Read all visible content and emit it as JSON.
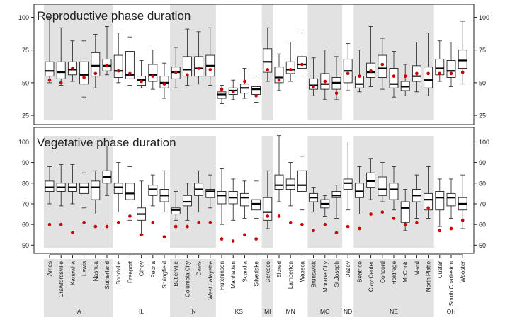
{
  "chart_data": {
    "type": "boxplot",
    "colors": {
      "shade": "#e2e2e2",
      "box_fill": "#ffffff",
      "stroke": "#222222",
      "median": "#000000",
      "point": "#cc0000"
    },
    "sites": [
      {
        "name": "Ames",
        "state": "IA"
      },
      {
        "name": "Crawfordsville",
        "state": "IA"
      },
      {
        "name": "Kanawha",
        "state": "IA"
      },
      {
        "name": "Lewis",
        "state": "IA"
      },
      {
        "name": "Nashua",
        "state": "IA"
      },
      {
        "name": "Sutherland",
        "state": "IA"
      },
      {
        "name": "Bondville",
        "state": "IL"
      },
      {
        "name": "Freeport",
        "state": "IL"
      },
      {
        "name": "Olney",
        "state": "IL"
      },
      {
        "name": "Peoria",
        "state": "IL"
      },
      {
        "name": "Springfield",
        "state": "IL"
      },
      {
        "name": "Butlerville",
        "state": "IN"
      },
      {
        "name": "Columbia City",
        "state": "IN"
      },
      {
        "name": "Davis",
        "state": "IN"
      },
      {
        "name": "West Lafayette",
        "state": "IN"
      },
      {
        "name": "Hutchinson",
        "state": "KS"
      },
      {
        "name": "Manhattan",
        "state": "KS"
      },
      {
        "name": "Scandia",
        "state": "KS"
      },
      {
        "name": "Silverlake",
        "state": "KS"
      },
      {
        "name": "Ceresco",
        "state": "MI"
      },
      {
        "name": "Eldred",
        "state": "MN"
      },
      {
        "name": "Lamberton",
        "state": "MN"
      },
      {
        "name": "Waseca",
        "state": "MN"
      },
      {
        "name": "Brunswick",
        "state": "MO"
      },
      {
        "name": "Monroe City",
        "state": "MO"
      },
      {
        "name": "St.Joseph",
        "state": "MO"
      },
      {
        "name": "Dazey",
        "state": "ND"
      },
      {
        "name": "Beatrice",
        "state": "NE"
      },
      {
        "name": "Clay Center",
        "state": "NE"
      },
      {
        "name": "Concord",
        "state": "NE"
      },
      {
        "name": "Holdrege",
        "state": "NE"
      },
      {
        "name": "McCook",
        "state": "NE"
      },
      {
        "name": "Mead",
        "state": "NE"
      },
      {
        "name": "North Platte",
        "state": "NE"
      },
      {
        "name": "Custar",
        "state": "OH"
      },
      {
        "name": "South Charleston",
        "state": "OH"
      },
      {
        "name": "Wooster",
        "state": "OH"
      }
    ],
    "states": [
      {
        "label": "IA",
        "first": 0,
        "last": 5,
        "shaded": true
      },
      {
        "label": "IL",
        "first": 6,
        "last": 10,
        "shaded": false
      },
      {
        "label": "IN",
        "first": 11,
        "last": 14,
        "shaded": true
      },
      {
        "label": "KS",
        "first": 15,
        "last": 18,
        "shaded": false
      },
      {
        "label": "MI",
        "first": 19,
        "last": 19,
        "shaded": true
      },
      {
        "label": "MN",
        "first": 20,
        "last": 22,
        "shaded": false
      },
      {
        "label": "MO",
        "first": 23,
        "last": 25,
        "shaded": true
      },
      {
        "label": "ND",
        "first": 26,
        "last": 26,
        "shaded": false
      },
      {
        "label": "NE",
        "first": 27,
        "last": 33,
        "shaded": true
      },
      {
        "label": "OH",
        "first": 34,
        "last": 36,
        "shaded": false
      }
    ],
    "panels": [
      {
        "title": "Reproductive phase duration",
        "ylim": [
          18,
          110
        ],
        "ticks": [
          25,
          50,
          75,
          100
        ],
        "boxes": [
          [
            50,
            55,
            59,
            66,
            100
          ],
          [
            48,
            53,
            58,
            66,
            92
          ],
          [
            51,
            56,
            60,
            66,
            82
          ],
          [
            39,
            49,
            56,
            66,
            82
          ],
          [
            46,
            55,
            63,
            73,
            87
          ],
          [
            56,
            59,
            63,
            68,
            93
          ],
          [
            50,
            54,
            59,
            71,
            88
          ],
          [
            48,
            53,
            56,
            74,
            85
          ],
          [
            46,
            48,
            52,
            55,
            67
          ],
          [
            45,
            51,
            56,
            64,
            75
          ],
          [
            38,
            46,
            50,
            55,
            65
          ],
          [
            46,
            53,
            58,
            62,
            77
          ],
          [
            48,
            55,
            60,
            70,
            91
          ],
          [
            49,
            55,
            61,
            70,
            89
          ],
          [
            48,
            55,
            63,
            71,
            92
          ],
          [
            34,
            38,
            41,
            43,
            48
          ],
          [
            37,
            41,
            44,
            46,
            52
          ],
          [
            38,
            42,
            46,
            49,
            61
          ],
          [
            35,
            41,
            45,
            47,
            55
          ],
          [
            51,
            58,
            66,
            76,
            92
          ],
          [
            44,
            50,
            54,
            62,
            72
          ],
          [
            51,
            57,
            60,
            66,
            81
          ],
          [
            55,
            61,
            64,
            70,
            88
          ],
          [
            40,
            45,
            48,
            53,
            69
          ],
          [
            37,
            45,
            49,
            57,
            75
          ],
          [
            37,
            45,
            50,
            54,
            70
          ],
          [
            44,
            50,
            59,
            68,
            80
          ],
          [
            43,
            46,
            49,
            55,
            75
          ],
          [
            47,
            54,
            58,
            65,
            93
          ],
          [
            45,
            54,
            61,
            71,
            84
          ],
          [
            39,
            46,
            49,
            61,
            74
          ],
          [
            40,
            44,
            47,
            51,
            64
          ],
          [
            43,
            51,
            55,
            63,
            81
          ],
          [
            40,
            46,
            52,
            62,
            88
          ],
          [
            51,
            56,
            61,
            68,
            82
          ],
          [
            47,
            54,
            59,
            67,
            81
          ],
          [
            49,
            61,
            67,
            75,
            97
          ]
        ],
        "points": [
          52,
          50,
          61,
          54,
          57,
          63,
          59,
          57,
          51,
          55,
          49,
          58,
          56,
          61,
          60,
          45,
          43,
          51,
          40,
          60,
          52,
          60,
          64,
          47,
          51,
          42,
          57,
          55,
          59,
          64,
          55,
          55,
          57,
          57,
          57,
          57,
          58
        ]
      },
      {
        "title": "Vegetative phase duration",
        "ylim": [
          46,
          107
        ],
        "ticks": [
          50,
          60,
          70,
          80,
          90,
          100
        ],
        "boxes": [
          [
            70,
            76,
            78,
            81,
            88
          ],
          [
            69,
            76,
            78,
            80,
            89
          ],
          [
            70,
            76,
            78,
            80,
            89
          ],
          [
            68,
            75,
            78,
            80,
            85
          ],
          [
            65,
            72,
            78,
            81,
            86
          ],
          [
            74,
            80,
            83,
            86,
            98
          ],
          [
            66,
            75,
            78,
            80,
            90
          ],
          [
            62,
            72,
            75,
            80,
            88
          ],
          [
            55,
            62,
            65,
            68,
            81
          ],
          [
            69,
            74,
            77,
            79,
            84
          ],
          [
            66,
            71,
            74,
            77,
            86
          ],
          [
            62,
            65,
            67,
            68,
            76
          ],
          [
            62,
            69,
            71,
            74,
            80
          ],
          [
            66,
            74,
            77,
            80,
            86
          ],
          [
            68,
            73,
            76,
            77,
            84
          ],
          [
            60,
            70,
            74,
            76,
            87
          ],
          [
            62,
            70,
            73,
            76,
            82
          ],
          [
            63,
            69,
            73,
            75,
            81
          ],
          [
            63,
            67,
            70,
            72,
            81
          ],
          [
            58,
            62,
            66,
            73,
            86
          ],
          [
            71,
            77,
            79,
            84,
            103
          ],
          [
            69,
            77,
            79,
            82,
            90
          ],
          [
            67,
            76,
            79,
            86,
            93
          ],
          [
            66,
            71,
            73,
            75,
            78
          ],
          [
            64,
            68,
            70,
            72,
            74
          ],
          [
            63,
            73,
            74,
            76,
            79
          ],
          [
            67,
            77,
            80,
            82,
            100
          ],
          [
            65,
            73,
            76,
            80,
            88
          ],
          [
            72,
            78,
            81,
            85,
            92
          ],
          [
            71,
            74,
            77,
            83,
            90
          ],
          [
            67,
            72,
            77,
            80,
            88
          ],
          [
            57,
            61,
            68,
            71,
            77
          ],
          [
            63,
            71,
            74,
            77,
            84
          ],
          [
            63,
            67,
            72,
            75,
            88
          ],
          [
            59,
            67,
            73,
            76,
            82
          ],
          [
            63,
            69,
            73,
            75,
            82
          ],
          [
            58,
            67,
            70,
            73,
            84
          ]
        ],
        "points": [
          60,
          60,
          56,
          61,
          59,
          59,
          61,
          64,
          55,
          61,
          54,
          59,
          59,
          61,
          61,
          53,
          52,
          55,
          53,
          64,
          64,
          61,
          60,
          57,
          60,
          56,
          59,
          58,
          65,
          66,
          63,
          60,
          61,
          68,
          57,
          58,
          62
        ]
      }
    ]
  }
}
